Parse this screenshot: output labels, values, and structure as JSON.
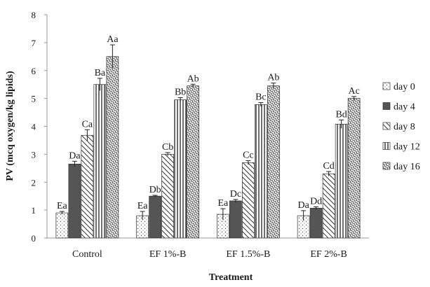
{
  "chart_data": {
    "type": "bar",
    "xlabel": "Treatment",
    "ylabel": "PV (mcq oxygen/kg lipids)",
    "ylim": [
      0,
      8
    ],
    "yticks": [
      0,
      1,
      2,
      3,
      4,
      5,
      6,
      7,
      8
    ],
    "grid": false,
    "legend_position": "right",
    "categories": [
      "Control",
      "EF 1%-B",
      "EF 1.5%-B",
      "EF 2%-B"
    ],
    "series": [
      {
        "name": "day 0",
        "pattern": "dots",
        "values": [
          0.9,
          0.8,
          0.85,
          0.8
        ],
        "errors": [
          0.05,
          0.15,
          0.2,
          0.18
        ],
        "labels": [
          "Ea",
          "Ea",
          "Ea",
          "Da"
        ]
      },
      {
        "name": "day 4",
        "pattern": "solid",
        "values": [
          2.65,
          1.5,
          1.33,
          1.07
        ],
        "errors": [
          0.1,
          0.03,
          0.05,
          0.05
        ],
        "labels": [
          "Da",
          "Db",
          "Dc",
          "Dd"
        ]
      },
      {
        "name": "day 8",
        "pattern": "diagonal",
        "values": [
          3.68,
          3.0,
          2.7,
          2.3
        ],
        "errors": [
          0.2,
          0.06,
          0.07,
          0.08
        ],
        "labels": [
          "Ca",
          "Cb",
          "Cc",
          "Cd"
        ]
      },
      {
        "name": "day 12",
        "pattern": "vertical",
        "values": [
          5.5,
          4.95,
          4.78,
          4.08
        ],
        "errors": [
          0.22,
          0.08,
          0.07,
          0.15
        ],
        "labels": [
          "Ba",
          "Bb",
          "Bc",
          "Bd"
        ]
      },
      {
        "name": "day 16",
        "pattern": "wave",
        "values": [
          6.5,
          5.45,
          5.45,
          5.0
        ],
        "errors": [
          0.42,
          0.06,
          0.1,
          0.07
        ],
        "labels": [
          "Aa",
          "Ab",
          "Ab",
          "Ac"
        ]
      }
    ],
    "colors": {
      "dark_fill": "#555555",
      "stroke": "#333333",
      "axis": "#999999"
    }
  }
}
